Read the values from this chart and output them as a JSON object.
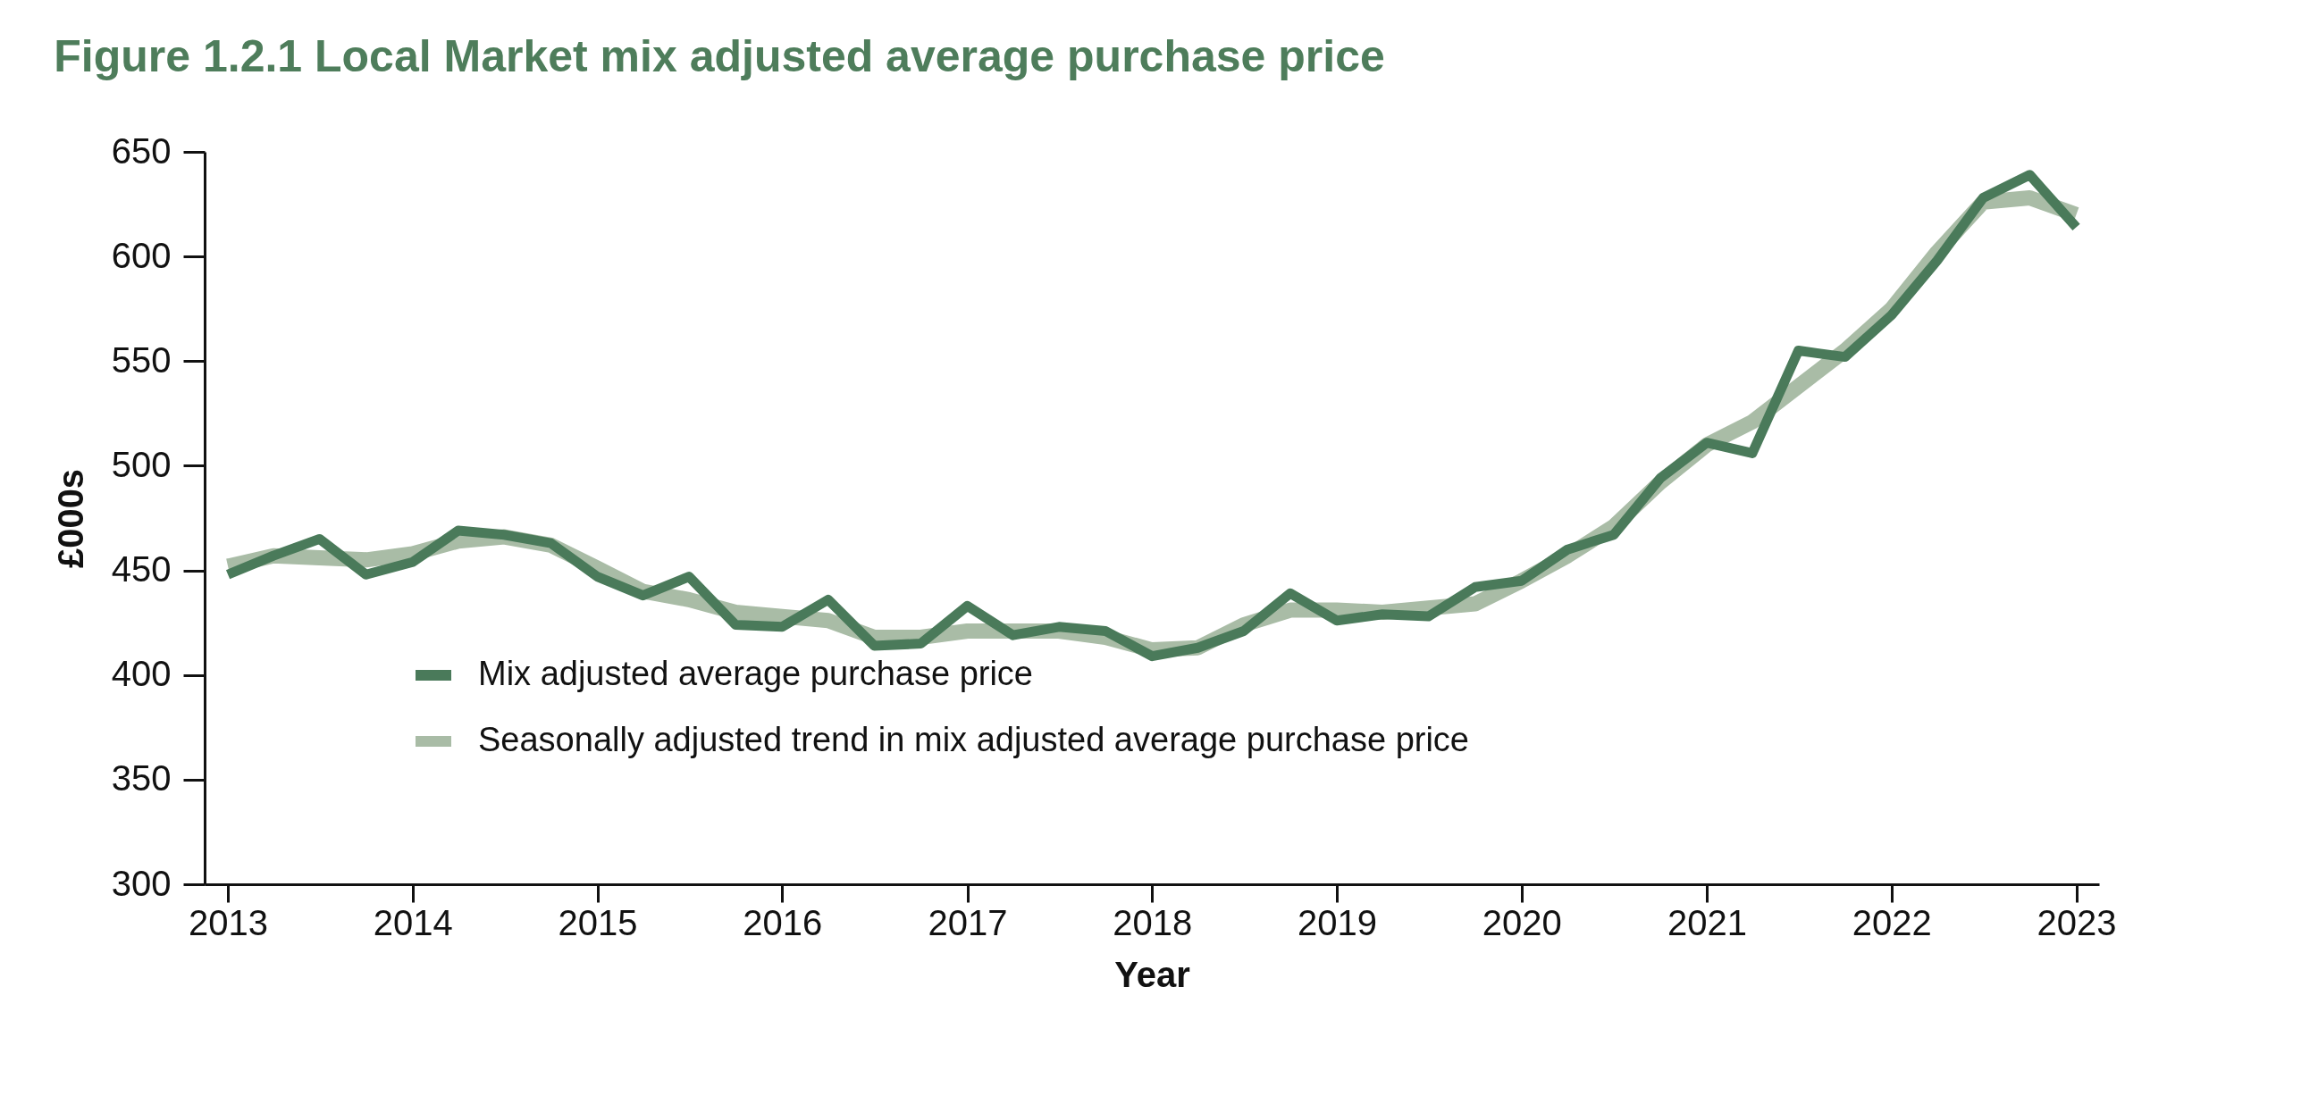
{
  "chart_data": {
    "type": "line",
    "title": "Figure 1.2.1 Local Market mix adjusted average purchase price",
    "xlabel": "Year",
    "ylabel": "£000s",
    "x": [
      "2013-01",
      "2013-04",
      "2013-07",
      "2013-10",
      "2014-01",
      "2014-04",
      "2014-07",
      "2014-10",
      "2015-01",
      "2015-04",
      "2015-07",
      "2015-10",
      "2016-01",
      "2016-04",
      "2016-07",
      "2016-10",
      "2017-01",
      "2017-04",
      "2017-07",
      "2017-10",
      "2018-01",
      "2018-04",
      "2018-07",
      "2018-10",
      "2019-01",
      "2019-04",
      "2019-07",
      "2019-10",
      "2020-01",
      "2020-04",
      "2020-07",
      "2020-10",
      "2021-01",
      "2021-04",
      "2021-07",
      "2021-10",
      "2022-01",
      "2022-04",
      "2022-07",
      "2022-10",
      "2023-01"
    ],
    "series": [
      {
        "name": "Mix adjusted average purchase price",
        "color": "#4a7a5a",
        "values": [
          448,
          457,
          465,
          448,
          454,
          469,
          467,
          463,
          447,
          438,
          447,
          424,
          423,
          436,
          414,
          415,
          433,
          419,
          423,
          421,
          409,
          413,
          421,
          439,
          426,
          429,
          428,
          442,
          445,
          460,
          467,
          494,
          511,
          506,
          555,
          552,
          572,
          598,
          628,
          639,
          614
        ]
      },
      {
        "name": "Seasonally adjusted trend in mix adjusted average purchase price",
        "color": "#a9bca6",
        "values": [
          452,
          457,
          456,
          455,
          458,
          464,
          466,
          462,
          451,
          440,
          436,
          430,
          428,
          426,
          418,
          418,
          421,
          421,
          421,
          418,
          412,
          413,
          424,
          431,
          431,
          430,
          432,
          434,
          445,
          457,
          471,
          492,
          510,
          521,
          538,
          555,
          575,
          602,
          626,
          628,
          620
        ]
      }
    ],
    "xlim": [
      "2012-11-16",
      "2023-02-15"
    ],
    "xticks": [
      {
        "value": "2013",
        "label": "2013"
      },
      {
        "value": "2014",
        "label": "2014"
      },
      {
        "value": "2015",
        "label": "2015"
      },
      {
        "value": "2016",
        "label": "2016"
      },
      {
        "value": "2017",
        "label": "2017"
      },
      {
        "value": "2018",
        "label": "2018"
      },
      {
        "value": "2019",
        "label": "2019"
      },
      {
        "value": "2020",
        "label": "2020"
      },
      {
        "value": "2021",
        "label": "2021"
      },
      {
        "value": "2022",
        "label": "2022"
      },
      {
        "value": "2023",
        "label": "2023"
      }
    ],
    "ylim": [
      300,
      650
    ],
    "yticks": [
      300,
      350,
      400,
      450,
      500,
      550,
      600,
      650
    ],
    "grid": false,
    "legend": "bottom left",
    "marker": "none",
    "line_style": "solid"
  }
}
